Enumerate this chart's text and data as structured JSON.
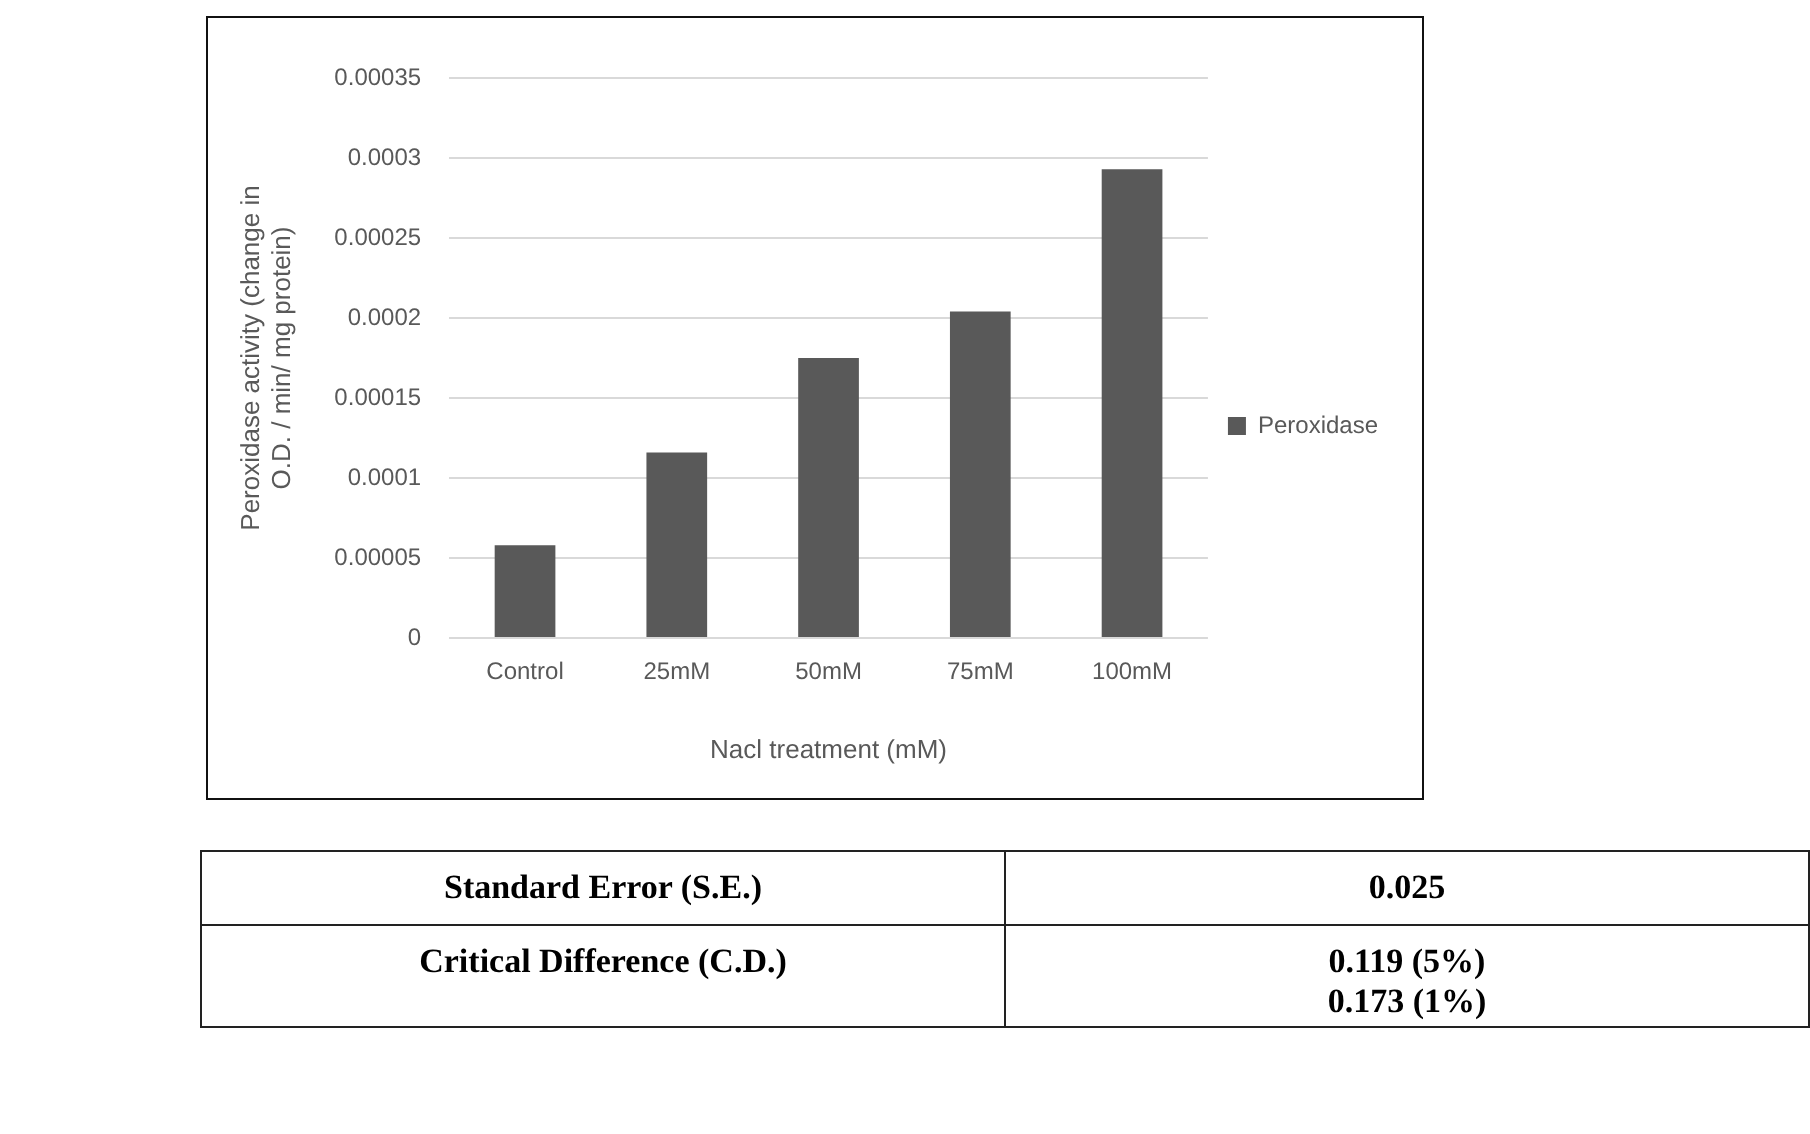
{
  "chart_data": {
    "type": "bar",
    "xlabel": "Nacl treatment (mM)",
    "ylabel": "Peroxidase activity (change in O.D. / min/ mg protein)",
    "categories": [
      "Control",
      "25mM",
      "50mM",
      "75mM",
      "100mM"
    ],
    "series": [
      {
        "name": "Peroxidase",
        "color": "#595959",
        "values": [
          5.8e-05,
          0.000116,
          0.000175,
          0.000204,
          0.000293
        ]
      }
    ],
    "ylim": [
      0,
      0.00035
    ],
    "yticks": [
      0,
      {
        "value": 5e-05,
        "label": "0.00005"
      },
      0.0001,
      0.00015,
      0.0002,
      0.00025,
      0.0003,
      0.00035
    ],
    "grid": "y",
    "legend": "right",
    "annotations": [
      "Standard Error (S.E.)",
      "0.025",
      "Critical Difference (C.D.)",
      "0.119 (5%)",
      "0.173 (1%)"
    ]
  }
}
